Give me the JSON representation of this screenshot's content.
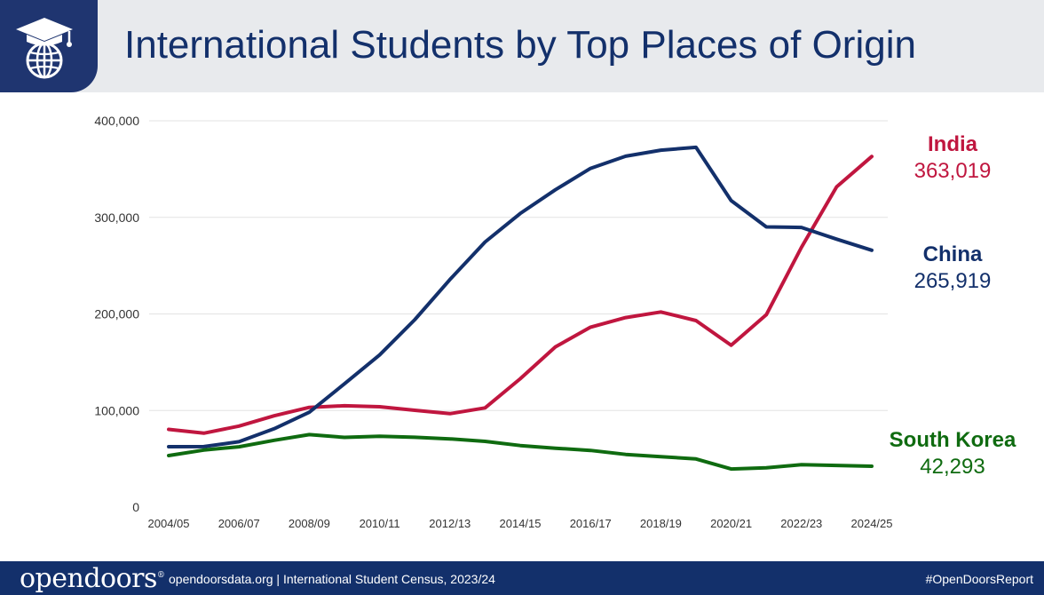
{
  "header": {
    "title": "International Students by Top Places of Origin",
    "logo_icon": "graduation-globe-icon"
  },
  "chart_data": {
    "type": "line",
    "x": [
      "2004/05",
      "2005/06",
      "2006/07",
      "2007/08",
      "2008/09",
      "2009/10",
      "2010/11",
      "2011/12",
      "2012/13",
      "2013/14",
      "2014/15",
      "2015/16",
      "2016/17",
      "2017/18",
      "2018/19",
      "2019/20",
      "2020/21",
      "2021/22",
      "2022/23",
      "2023/24",
      "2024/25"
    ],
    "x_tick_labels": [
      "2004/05",
      "2006/07",
      "2008/09",
      "2010/11",
      "2012/13",
      "2014/15",
      "2016/17",
      "2018/19",
      "2020/21",
      "2022/23",
      "2024/25"
    ],
    "ylim": [
      0,
      400000
    ],
    "y_ticks": [
      0,
      100000,
      200000,
      300000,
      400000
    ],
    "y_tick_labels": [
      "0",
      "100,000",
      "200,000",
      "300,000",
      "400,000"
    ],
    "grid": true,
    "legend": "end-of-line labels",
    "series": [
      {
        "name": "India",
        "end_value": "363,019",
        "color": "#c0163f",
        "values": [
          80466,
          76503,
          83833,
          94563,
          103260,
          104897,
          103895,
          100270,
          96754,
          102673,
          132888,
          165918,
          186267,
          196271,
          202014,
          193124,
          167582,
          199182,
          268923,
          331602,
          363019
        ]
      },
      {
        "name": "China",
        "end_value": "265,919",
        "color": "#13306b",
        "values": [
          62523,
          62582,
          67723,
          81127,
          98235,
          127628,
          157558,
          194029,
          235597,
          274439,
          304040,
          328547,
          350755,
          363341,
          369548,
          372532,
          317299,
          290086,
          289526,
          277398,
          265919
        ]
      },
      {
        "name": "South Korea",
        "end_value": "42,293",
        "color": "#0f6b10",
        "values": [
          53358,
          59022,
          62392,
          69124,
          75065,
          72153,
          73351,
          72295,
          70627,
          68047,
          63710,
          61007,
          58663,
          54555,
          52250,
          49809,
          39491,
          40755,
          43847,
          43149,
          42293
        ]
      }
    ]
  },
  "footer": {
    "brand": "opendoors",
    "source": "opendoorsdata.org  |  International Student Census, 2023/24",
    "hashtag": "#OpenDoorsReport"
  }
}
